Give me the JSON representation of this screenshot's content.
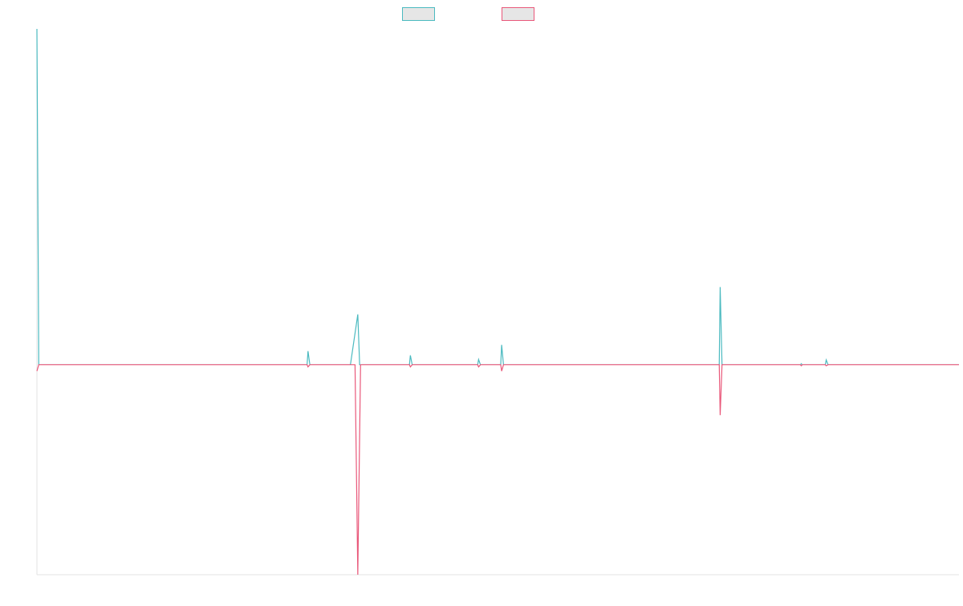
{
  "chart_data": {
    "type": "line",
    "title": "",
    "xlabel": "",
    "ylabel": "",
    "grid": false,
    "legend": "top-center",
    "xlim": [
      0,
      1000
    ],
    "ylim": [
      -100,
      160
    ],
    "series": [
      {
        "color": "#4bbac0",
        "points": [
          [
            0,
            160
          ],
          [
            2,
            0
          ],
          [
            40,
            0
          ],
          [
            293,
            0
          ],
          [
            294,
            6.5
          ],
          [
            296,
            0
          ],
          [
            340,
            0
          ],
          [
            348,
            24
          ],
          [
            350,
            0
          ],
          [
            352,
            0
          ],
          [
            404,
            0
          ],
          [
            405,
            4.5
          ],
          [
            407,
            0
          ],
          [
            478,
            0
          ],
          [
            479,
            2.5
          ],
          [
            481,
            0
          ],
          [
            503,
            0
          ],
          [
            504,
            9.5
          ],
          [
            506,
            0
          ],
          [
            740,
            0
          ],
          [
            741,
            37
          ],
          [
            743,
            0
          ],
          [
            828,
            0
          ],
          [
            829,
            0.5
          ],
          [
            830,
            0
          ],
          [
            855,
            0
          ],
          [
            856,
            2.3
          ],
          [
            858,
            0
          ],
          [
            1000,
            0
          ]
        ]
      },
      {
        "color": "#e9587a",
        "points": [
          [
            0,
            -3
          ],
          [
            2,
            0
          ],
          [
            40,
            0
          ],
          [
            293,
            0
          ],
          [
            294,
            -1
          ],
          [
            296,
            0
          ],
          [
            345,
            0
          ],
          [
            348,
            -100
          ],
          [
            351,
            0
          ],
          [
            352,
            0
          ],
          [
            404,
            0
          ],
          [
            405,
            -1
          ],
          [
            407,
            0
          ],
          [
            478,
            0
          ],
          [
            479,
            -1
          ],
          [
            481,
            0
          ],
          [
            503,
            0
          ],
          [
            504,
            -3
          ],
          [
            506,
            0
          ],
          [
            740,
            0
          ],
          [
            741,
            -24
          ],
          [
            743,
            0
          ],
          [
            828,
            0
          ],
          [
            829,
            -0.5
          ],
          [
            830,
            0
          ],
          [
            855,
            0
          ],
          [
            856,
            -0.5
          ],
          [
            858,
            0
          ],
          [
            1000,
            0
          ]
        ]
      }
    ]
  }
}
